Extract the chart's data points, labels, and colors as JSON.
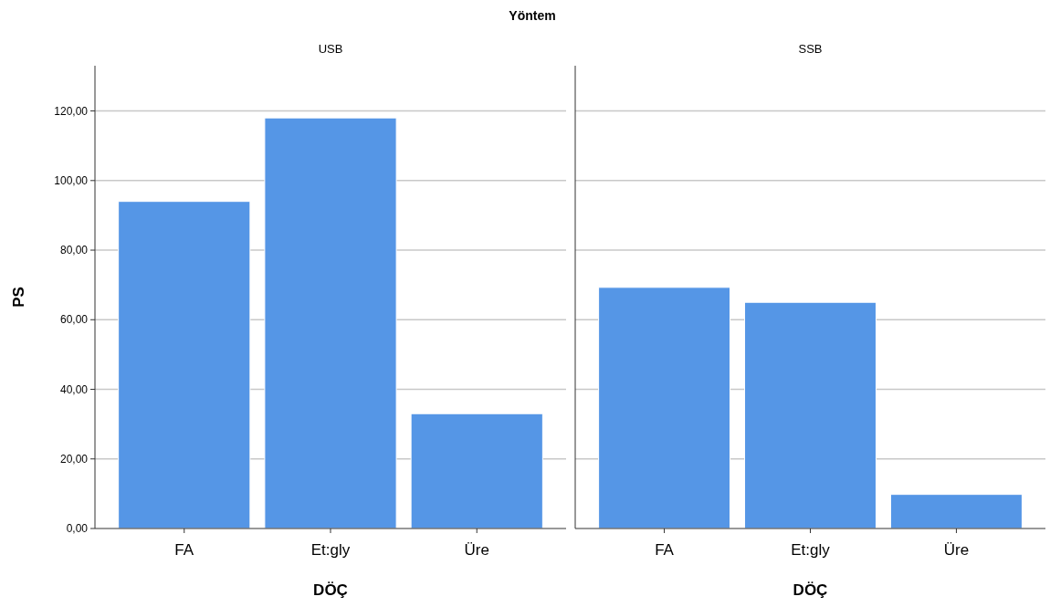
{
  "chart_data": [
    {
      "type": "bar",
      "title": "USB",
      "xlabel": "DÖÇ",
      "ylabel": "PS",
      "annotations": [
        "Yöntem"
      ],
      "categories": [
        "FA",
        "Et:gly",
        "Üre"
      ],
      "values": [
        94,
        118,
        33
      ],
      "color": "#5596e6",
      "ylim": [
        0,
        133
      ],
      "yticks": [
        {
          "value": 0,
          "label": "0,00"
        },
        {
          "value": 20,
          "label": "20,00"
        },
        {
          "value": 40,
          "label": "40,00"
        },
        {
          "value": 60,
          "label": "60,00"
        },
        {
          "value": 80,
          "label": "80,00"
        },
        {
          "value": 100,
          "label": "100,00"
        },
        {
          "value": 120,
          "label": "120,00"
        }
      ],
      "grid": "y"
    },
    {
      "type": "bar",
      "title": "SSB",
      "xlabel": "DÖÇ",
      "categories": [
        "FA",
        "Et:gly",
        "Üre"
      ],
      "values": [
        69.3,
        65,
        9.8
      ],
      "color": "#5596e6",
      "ylim": [
        0,
        133
      ],
      "yticks": [
        {
          "value": 0,
          "label": null
        },
        {
          "value": 20,
          "label": null
        },
        {
          "value": 40,
          "label": null
        },
        {
          "value": 60,
          "label": null
        },
        {
          "value": 80,
          "label": null
        },
        {
          "value": 100,
          "label": null
        },
        {
          "value": 120,
          "label": null
        }
      ],
      "grid": "y",
      "tick_labels": "x"
    }
  ]
}
